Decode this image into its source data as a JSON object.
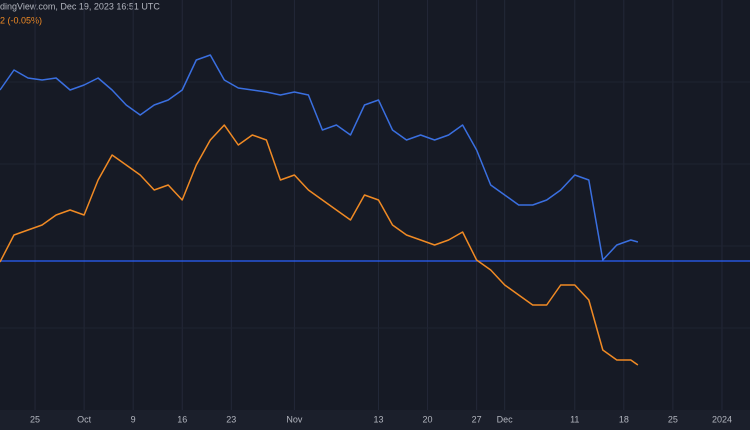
{
  "header": {
    "source": "dingView.com, Dec 19, 2023 16:51 UTC",
    "change": "2 (-0.05%)"
  },
  "chart_data": {
    "type": "line",
    "x": [
      0,
      2,
      4,
      6,
      8,
      10,
      12,
      14,
      16,
      18,
      20,
      22,
      24,
      26,
      28,
      30,
      32,
      34,
      36,
      38,
      40,
      42,
      44,
      46,
      48,
      50,
      52,
      54,
      56,
      58,
      60,
      62,
      64,
      66,
      68,
      70,
      72,
      74,
      76,
      78,
      80,
      82,
      84,
      86,
      88,
      90,
      91
    ],
    "series": [
      {
        "color": "#3a6fe0",
        "values": [
          320,
          340,
          332,
          330,
          332,
          320,
          325,
          332,
          320,
          305,
          295,
          305,
          310,
          320,
          350,
          355,
          330,
          322,
          320,
          318,
          315,
          318,
          315,
          280,
          285,
          275,
          305,
          310,
          280,
          270,
          275,
          270,
          275,
          285,
          260,
          225,
          215,
          205,
          205,
          210,
          220,
          235,
          230,
          150,
          165,
          170,
          168
        ]
      },
      {
        "color": "#f08a24",
        "values": [
          148,
          175,
          180,
          185,
          195,
          200,
          195,
          230,
          255,
          245,
          235,
          220,
          225,
          210,
          245,
          270,
          285,
          265,
          275,
          270,
          230,
          235,
          220,
          210,
          200,
          190,
          215,
          210,
          185,
          175,
          170,
          165,
          170,
          178,
          150,
          140,
          125,
          115,
          105,
          105,
          125,
          125,
          110,
          60,
          50,
          50,
          45
        ]
      }
    ],
    "reference_line": {
      "value": 149,
      "color": "#2962ff"
    },
    "xlim": [
      0,
      107
    ],
    "ylim": [
      0,
      410
    ],
    "xticks": [
      {
        "value": 5,
        "label": "25"
      },
      {
        "value": 12,
        "label": "Oct"
      },
      {
        "value": 19,
        "label": "9"
      },
      {
        "value": 26,
        "label": "16"
      },
      {
        "value": 33,
        "label": "23"
      },
      {
        "value": 42,
        "label": "Nov"
      },
      {
        "value": 54,
        "label": "13"
      },
      {
        "value": 61,
        "label": "20"
      },
      {
        "value": 68,
        "label": "27"
      },
      {
        "value": 72,
        "label": "Dec"
      },
      {
        "value": 82,
        "label": "11"
      },
      {
        "value": 89,
        "label": "18"
      },
      {
        "value": 96,
        "label": "25"
      },
      {
        "value": 103,
        "label": "2024"
      }
    ],
    "grid": true
  }
}
